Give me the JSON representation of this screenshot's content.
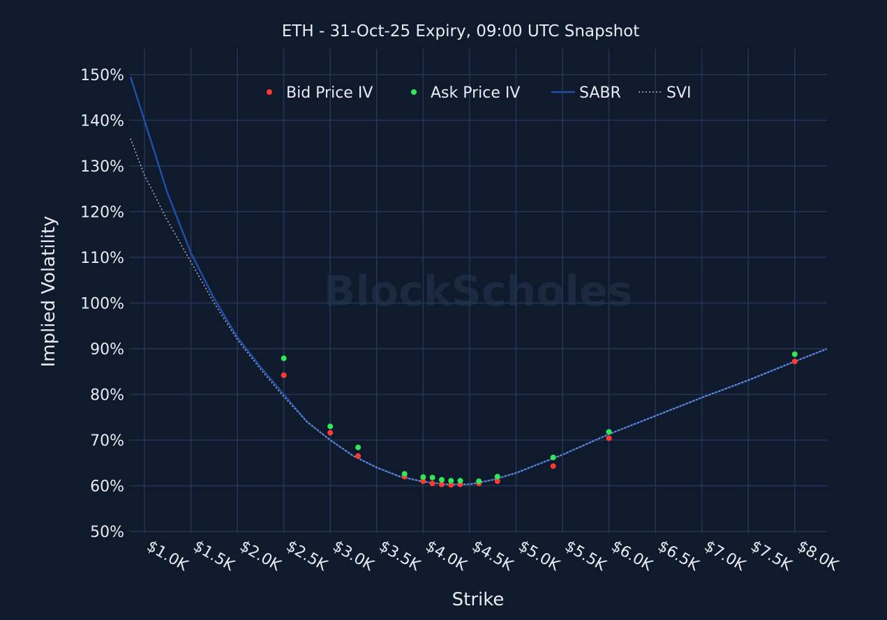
{
  "chart_data": {
    "type": "scatter",
    "title": "ETH - 31-Oct-25 Expiry, 09:00 UTC Snapshot",
    "xlabel": "Strike",
    "ylabel": "Implied Volatility",
    "watermark": "BlockScholes",
    "xlim": [
      850,
      8350
    ],
    "ylim": [
      50,
      150
    ],
    "x_ticks": [
      1000,
      1500,
      2000,
      2500,
      3000,
      3500,
      4000,
      4500,
      5000,
      5500,
      6000,
      6500,
      7000,
      7500,
      8000
    ],
    "x_tick_labels": [
      "$1.0K",
      "$1.5K",
      "$2.0K",
      "$2.5K",
      "$3.0K",
      "$3.5K",
      "$4.0K",
      "$4.5K",
      "$5.0K",
      "$5.5K",
      "$6.0K",
      "$6.5K",
      "$7.0K",
      "$7.5K",
      "$8.0K"
    ],
    "y_ticks": [
      50,
      60,
      70,
      80,
      90,
      100,
      110,
      120,
      130,
      140,
      150
    ],
    "y_tick_labels": [
      "50%",
      "60%",
      "70%",
      "80%",
      "90%",
      "100%",
      "110%",
      "120%",
      "130%",
      "140%",
      "150%"
    ],
    "grid": true,
    "legend_position": "top-center",
    "series": [
      {
        "name": "Bid Price IV",
        "kind": "markers",
        "color": "#ff3b2f",
        "x": [
          2500,
          3000,
          3300,
          3800,
          4000,
          4100,
          4200,
          4300,
          4400,
          4600,
          4800,
          5400,
          6000,
          8000
        ],
        "y": [
          84.2,
          71.6,
          66.5,
          62.0,
          61.0,
          60.5,
          60.3,
          60.2,
          60.3,
          60.5,
          61.0,
          64.3,
          70.4,
          87.2
        ]
      },
      {
        "name": "Ask Price IV",
        "kind": "markers",
        "color": "#2ee85a",
        "x": [
          2500,
          3000,
          3300,
          3800,
          4000,
          4100,
          4200,
          4300,
          4400,
          4600,
          4800,
          5400,
          6000,
          8000
        ],
        "y": [
          87.9,
          73.0,
          68.4,
          62.6,
          61.9,
          61.8,
          61.3,
          61.1,
          61.1,
          61.0,
          62.0,
          66.2,
          71.8,
          88.8
        ]
      },
      {
        "name": "SABR",
        "kind": "line",
        "color": "#1f4fa8",
        "x": [
          850,
          1000,
          1250,
          1500,
          1750,
          2000,
          2250,
          2500,
          2750,
          3000,
          3250,
          3500,
          3750,
          4000,
          4250,
          4500,
          4750,
          5000,
          5500,
          6000,
          6500,
          7000,
          7500,
          8000,
          8350
        ],
        "y": [
          149.5,
          140.0,
          124.0,
          111.0,
          101.0,
          92.5,
          86.0,
          80.0,
          74.0,
          70.0,
          66.5,
          64.0,
          62.0,
          60.9,
          60.3,
          60.3,
          61.3,
          62.8,
          66.8,
          71.3,
          75.3,
          79.3,
          83.1,
          87.2,
          90.0
        ]
      },
      {
        "name": "SVI",
        "kind": "line-dotted",
        "color": "#9aa3ad",
        "x": [
          850,
          1000,
          1250,
          1500,
          1750,
          2000,
          2250,
          2500,
          2750,
          3000,
          3250,
          3500,
          3750,
          4000,
          4250,
          4500,
          4750,
          5000,
          5500,
          6000,
          6500,
          7000,
          7500,
          8000,
          8350
        ],
        "y": [
          136.0,
          128.0,
          118.0,
          109.0,
          100.0,
          92.0,
          85.5,
          79.5,
          74.0,
          70.0,
          66.5,
          64.0,
          62.0,
          60.9,
          60.3,
          60.3,
          61.3,
          62.8,
          66.8,
          71.3,
          75.3,
          79.3,
          83.1,
          87.2,
          90.0
        ]
      }
    ]
  }
}
